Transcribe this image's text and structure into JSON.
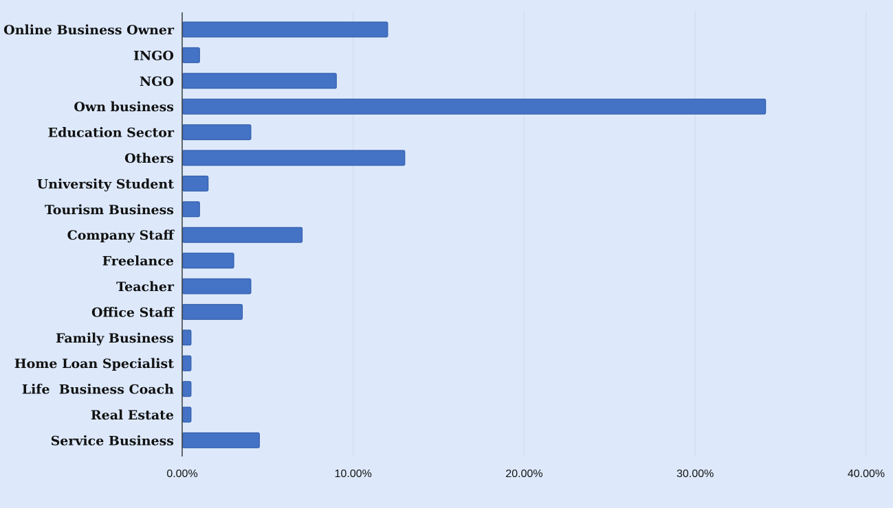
{
  "chart_data": {
    "type": "bar",
    "orientation": "horizontal",
    "categories": [
      "Online Business Owner",
      "INGO",
      "NGO",
      "Own business",
      "Education Sector",
      "Others",
      "University Student",
      "Tourism Business",
      "Company Staff",
      "Freelance",
      "Teacher",
      "Office Staff",
      "Family Business",
      "Home Loan Specialist",
      "Life  Business Coach",
      "Real Estate",
      "Service Business"
    ],
    "values": [
      12.0,
      1.0,
      9.0,
      34.1,
      4.0,
      13.0,
      1.5,
      1.0,
      7.0,
      3.0,
      4.0,
      3.5,
      0.5,
      0.5,
      0.5,
      0.5,
      4.5
    ],
    "xlim": [
      0,
      40
    ],
    "xticks": [
      0,
      10,
      20,
      30,
      40
    ],
    "xtick_labels": [
      "0.00%",
      "10.00%",
      "20.00%",
      "30.00%",
      "40.00%"
    ],
    "grid": "vertical",
    "legend": "none",
    "colors": {
      "background": "#dde9fb",
      "bar": "#4472c4",
      "bar_stroke": "#2e5aa8",
      "gridline": "#cfdaea",
      "axis": "#3a3a3a"
    }
  }
}
